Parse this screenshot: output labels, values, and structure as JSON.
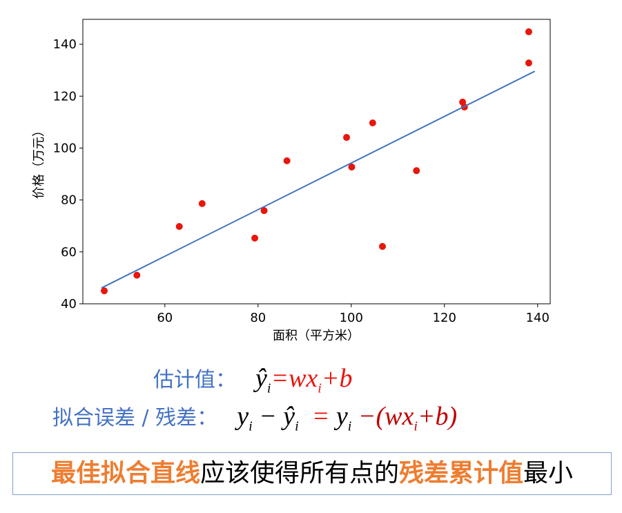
{
  "chart_data": {
    "type": "scatter",
    "xlabel": "面积（平方米）",
    "ylabel": "价格（万元）",
    "xlim": [
      42.4,
      142.7
    ],
    "ylim": [
      40,
      149.6
    ],
    "xticks": [
      60,
      80,
      100,
      120,
      140
    ],
    "yticks": [
      40,
      60,
      80,
      100,
      120,
      140
    ],
    "series": [
      {
        "kind": "points",
        "color": "#e8160c",
        "x": [
          47,
          54,
          63.1,
          68,
          79.3,
          81.3,
          86.2,
          99,
          100.1,
          104.6,
          106.7,
          114,
          123.9,
          124.3,
          138.1,
          138.1
        ],
        "values": [
          45,
          51,
          69.8,
          78.6,
          65.3,
          75.9,
          95.1,
          104.1,
          92.7,
          109.7,
          62.1,
          91.3,
          117.7,
          115.8,
          144.8,
          132.8
        ]
      },
      {
        "kind": "line",
        "color": "#4472c4",
        "x": [
          46.4,
          139.4
        ],
        "values": [
          46.1,
          129.6
        ]
      }
    ]
  },
  "formulas": [
    {
      "label": "估计值：",
      "tokens": [
        {
          "text": "ŷ",
          "sub": "i",
          "color": "#000000"
        },
        {
          "text": "=wx",
          "sub": "i",
          "color": "#e8160c"
        },
        {
          "text": "+b",
          "color": "#e8160c"
        }
      ]
    },
    {
      "label": "拟合误差 / 残差：",
      "tokens": [
        {
          "text": "y",
          "sub": "i",
          "color": "#000000"
        },
        {
          "text": " − ŷ",
          "sub": "i",
          "color": "#000000"
        },
        {
          "text": "  = ",
          "color": "#e8160c"
        },
        {
          "text": "y",
          "sub": "i",
          "color": "#000000"
        },
        {
          "text": " −(wx",
          "sub": "i",
          "color": "#c00000"
        },
        {
          "text": "+b)",
          "color": "#c00000"
        }
      ]
    }
  ],
  "conclusion": [
    {
      "text": "最佳拟合直线",
      "emphasis": true
    },
    {
      "text": "应该使得所有点的",
      "emphasis": false
    },
    {
      "text": "残差累计值",
      "emphasis": true
    },
    {
      "text": "最小",
      "emphasis": false
    }
  ]
}
